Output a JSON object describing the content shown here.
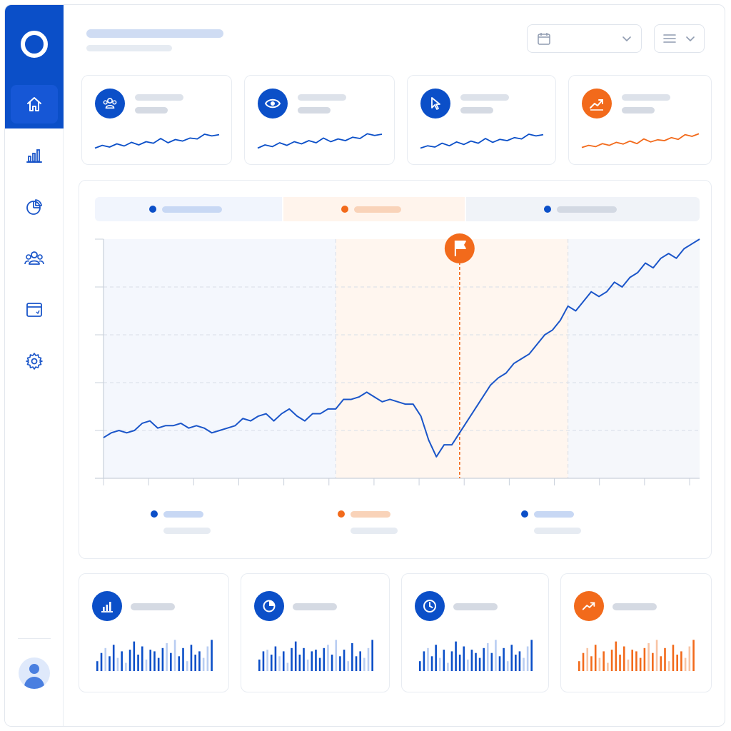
{
  "app": {
    "title": ""
  },
  "colors": {
    "brand_blue": "#0b4fc8",
    "line_blue": "#1a55c9",
    "accent_orange": "#f26a1b",
    "light_blue_bg": "#f1f5fd",
    "light_orange_bg": "#fff4ec",
    "light_gray_bg": "#f0f3f8"
  },
  "sidebar": {
    "items": [
      {
        "icon": "home-icon",
        "active": true
      },
      {
        "icon": "bar-chart-icon",
        "active": false
      },
      {
        "icon": "pie-chart-icon",
        "active": false
      },
      {
        "icon": "users-icon",
        "active": false
      },
      {
        "icon": "calendar-window-icon",
        "active": false
      },
      {
        "icon": "gear-icon",
        "active": false
      }
    ],
    "avatar_icon": "user-avatar-icon"
  },
  "header": {
    "date_picker": {
      "icon": "calendar-icon",
      "value": "",
      "chevron": "chevron-down-icon"
    },
    "view_menu": {
      "icon": "menu-lines-icon",
      "chevron": "chevron-down-icon"
    }
  },
  "kpis": [
    {
      "icon": "users-icon",
      "color": "#0b4fc8",
      "trend": [
        0.15,
        0.28,
        0.2,
        0.35,
        0.25,
        0.42,
        0.3,
        0.45,
        0.38,
        0.6,
        0.4,
        0.55,
        0.48,
        0.62,
        0.58,
        0.8,
        0.72,
        0.78
      ]
    },
    {
      "icon": "eye-icon",
      "color": "#0b4fc8",
      "trend": [
        0.15,
        0.3,
        0.22,
        0.4,
        0.28,
        0.45,
        0.35,
        0.5,
        0.4,
        0.62,
        0.45,
        0.58,
        0.5,
        0.66,
        0.6,
        0.82,
        0.74,
        0.8
      ]
    },
    {
      "icon": "cursor-icon",
      "color": "#0b4fc8",
      "trend": [
        0.15,
        0.26,
        0.2,
        0.38,
        0.26,
        0.44,
        0.32,
        0.48,
        0.38,
        0.6,
        0.42,
        0.56,
        0.5,
        0.64,
        0.58,
        0.8,
        0.72,
        0.78
      ]
    },
    {
      "icon": "trend-up-icon",
      "color": "#f26a1b",
      "trend": [
        0.18,
        0.28,
        0.22,
        0.36,
        0.28,
        0.42,
        0.34,
        0.48,
        0.36,
        0.58,
        0.44,
        0.54,
        0.5,
        0.64,
        0.56,
        0.78,
        0.7,
        0.82
      ]
    }
  ],
  "main_chart": {
    "segments": [
      {
        "label": "",
        "color": "#0b4fc8"
      },
      {
        "label": "",
        "color": "#f26a1b"
      },
      {
        "label": "",
        "color": "#0b4fc8"
      }
    ],
    "marker_icon": "flag-icon",
    "legend": [
      {
        "color": "#0b4fc8"
      },
      {
        "color": "#f26a1b"
      },
      {
        "color": "#0b4fc8"
      }
    ]
  },
  "chart_data": {
    "type": "line",
    "title": "",
    "xlabel": "",
    "ylabel": "",
    "grid": true,
    "ylim": [
      0,
      100
    ],
    "phase_boundaries_x": [
      30,
      60
    ],
    "event_marker_x": 46,
    "series": [
      {
        "values": [
          17,
          19,
          20,
          19,
          20,
          23,
          24,
          21,
          22,
          22,
          23,
          21,
          22,
          21,
          19,
          20,
          21,
          22,
          25,
          24,
          26,
          27,
          24,
          27,
          29,
          26,
          24,
          27,
          27,
          29,
          29,
          33,
          33,
          34,
          36,
          34,
          32,
          33,
          32,
          31,
          31,
          26,
          16,
          9,
          14,
          14,
          19,
          24,
          29,
          34,
          39,
          42,
          44,
          48,
          50,
          52,
          56,
          60,
          62,
          66,
          72,
          70,
          74,
          78,
          76,
          78,
          82,
          80,
          84,
          86,
          90,
          88,
          92,
          94,
          92,
          96,
          98,
          100
        ]
      }
    ]
  },
  "mini_cards": [
    {
      "icon": "bar-chart-icon",
      "color": "#0b4fc8",
      "light": "#b9cdf2",
      "values": [
        0.3,
        0.55,
        0.7,
        0.45,
        0.8,
        0.4,
        0.6,
        0.25,
        0.65,
        0.9,
        0.5,
        0.75,
        0.35,
        0.65,
        0.6,
        0.4,
        0.7,
        0.85,
        0.55,
        0.95,
        0.45,
        0.7,
        0.3,
        0.8,
        0.5,
        0.6,
        0.4,
        0.75,
        0.95
      ]
    },
    {
      "icon": "pie-chart-icon",
      "color": "#0b4fc8",
      "light": "#b9cdf2",
      "values": [
        0.35,
        0.6,
        0.65,
        0.5,
        0.75,
        0.45,
        0.6,
        0.25,
        0.7,
        0.9,
        0.5,
        0.7,
        0.35,
        0.6,
        0.65,
        0.4,
        0.7,
        0.8,
        0.5,
        0.95,
        0.45,
        0.65,
        0.3,
        0.85,
        0.45,
        0.6,
        0.4,
        0.7,
        0.95
      ]
    },
    {
      "icon": "clock-icon",
      "color": "#0b4fc8",
      "light": "#b9cdf2",
      "values": [
        0.3,
        0.6,
        0.7,
        0.45,
        0.8,
        0.4,
        0.65,
        0.25,
        0.6,
        0.9,
        0.5,
        0.75,
        0.35,
        0.65,
        0.55,
        0.4,
        0.7,
        0.85,
        0.55,
        0.95,
        0.45,
        0.7,
        0.3,
        0.8,
        0.5,
        0.6,
        0.4,
        0.75,
        0.95
      ]
    },
    {
      "icon": "trend-up-icon",
      "color": "#f26a1b",
      "light": "#f8c4a4",
      "values": [
        0.3,
        0.55,
        0.7,
        0.45,
        0.8,
        0.4,
        0.6,
        0.25,
        0.65,
        0.9,
        0.5,
        0.75,
        0.35,
        0.65,
        0.6,
        0.4,
        0.7,
        0.85,
        0.55,
        0.95,
        0.45,
        0.7,
        0.3,
        0.8,
        0.5,
        0.6,
        0.4,
        0.75,
        0.95
      ]
    }
  ]
}
